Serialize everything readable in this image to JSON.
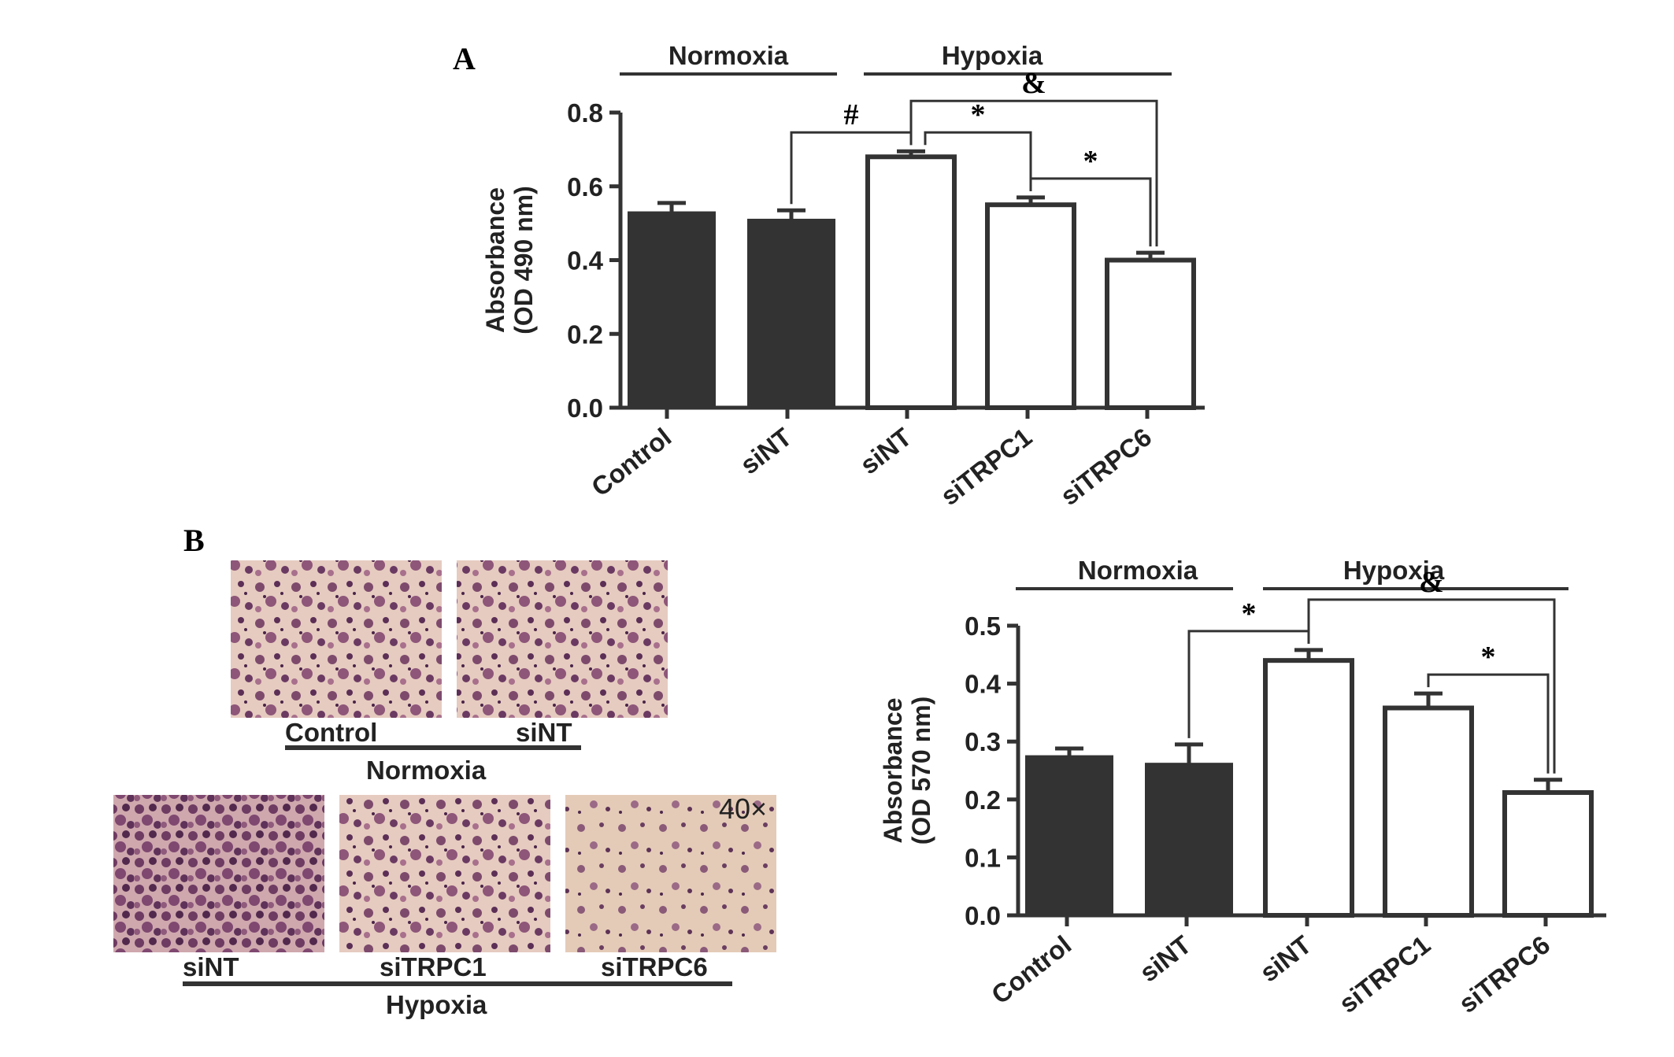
{
  "chart_data": [
    {
      "type": "bar",
      "panel": "A",
      "categories": [
        "Control",
        "siNT",
        "siNT",
        "siTRPC1",
        "siTRPC6"
      ],
      "groups": [
        {
          "label": "Normoxia",
          "categories": [
            "Control",
            "siNT"
          ]
        },
        {
          "label": "Hypoxia",
          "categories": [
            "siNT",
            "siTRPC1",
            "siTRPC6"
          ]
        }
      ],
      "values": [
        0.53,
        0.51,
        0.68,
        0.55,
        0.4
      ],
      "errors": [
        0.025,
        0.025,
        0.015,
        0.02,
        0.02
      ],
      "fills": [
        "#333333",
        "#333333",
        "#ffffff",
        "#ffffff",
        "#ffffff"
      ],
      "ylabel_line1": "Absorbance",
      "ylabel_line2": "(OD 490 nm)",
      "ylim": [
        0,
        0.8
      ],
      "yticks": [
        "0.0",
        "0.2",
        "0.4",
        "0.6",
        "0.8"
      ],
      "significance": [
        {
          "from": 1,
          "to": 2,
          "symbol": "#"
        },
        {
          "from": 2,
          "to": 3,
          "symbol": "*"
        },
        {
          "from": 3,
          "to": 4,
          "symbol": "*"
        },
        {
          "from": 2,
          "to": 4,
          "symbol": "&"
        }
      ]
    },
    {
      "type": "bar",
      "panel": "B",
      "categories": [
        "Control",
        "siNT",
        "siNT",
        "siTRPC1",
        "siTRPC6"
      ],
      "groups": [
        {
          "label": "Normoxia",
          "categories": [
            "Control",
            "siNT"
          ]
        },
        {
          "label": "Hypoxia",
          "categories": [
            "siNT",
            "siTRPC1",
            "siTRPC6"
          ]
        }
      ],
      "values": [
        0.275,
        0.262,
        0.44,
        0.358,
        0.212
      ],
      "errors": [
        0.013,
        0.033,
        0.018,
        0.025,
        0.022
      ],
      "fills": [
        "#333333",
        "#333333",
        "#ffffff",
        "#ffffff",
        "#ffffff"
      ],
      "ylabel_line1": "Absorbance",
      "ylabel_line2": "(OD 570 nm)",
      "ylim": [
        0,
        0.5
      ],
      "yticks": [
        "0.0",
        "0.1",
        "0.2",
        "0.3",
        "0.4",
        "0.5"
      ],
      "significance": [
        {
          "from": 1,
          "to": 2,
          "symbol": "*"
        },
        {
          "from": 3,
          "to": 4,
          "symbol": "*"
        },
        {
          "from": 2,
          "to": 4,
          "symbol": "&"
        }
      ]
    }
  ],
  "panels": {
    "a_label": "A",
    "b_label": "B"
  },
  "micrographs": {
    "normoxia": {
      "labels": [
        "Control",
        "siNT"
      ],
      "group_label": "Normoxia"
    },
    "hypoxia": {
      "labels": [
        "siNT",
        "siTRPC1",
        "siTRPC6"
      ],
      "group_label": "Hypoxia"
    },
    "magnification": "40×",
    "stain_colors": [
      "#e8cfc3",
      "#7a4466",
      "#5a2f55",
      "#b57a93"
    ]
  }
}
